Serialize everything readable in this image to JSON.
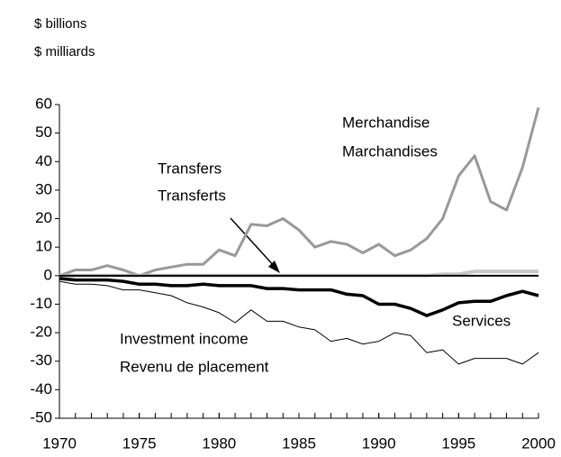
{
  "chart_data": {
    "type": "line",
    "units": [
      "$ billions",
      "$ milliards"
    ],
    "x": [
      1970,
      1971,
      1972,
      1973,
      1974,
      1975,
      1976,
      1977,
      1978,
      1979,
      1980,
      1981,
      1982,
      1983,
      1984,
      1985,
      1986,
      1987,
      1988,
      1989,
      1990,
      1991,
      1992,
      1993,
      1994,
      1995,
      1996,
      1997,
      1998,
      1999,
      2000
    ],
    "xlim": [
      1970,
      2000
    ],
    "xticks": [
      1970,
      1975,
      1980,
      1985,
      1990,
      1995,
      2000
    ],
    "ylim": [
      -50,
      60
    ],
    "yticks": [
      -50,
      -40,
      -30,
      -20,
      -10,
      0,
      10,
      20,
      30,
      40,
      50,
      60
    ],
    "series": [
      {
        "name": "Merchandise",
        "name_fr": "Marchandises",
        "color": "#999999",
        "width": 3,
        "values": [
          0,
          2,
          2,
          3.5,
          2,
          0,
          2,
          3,
          4,
          4,
          9,
          7,
          18,
          17.5,
          20,
          16,
          10,
          12,
          11,
          8,
          11,
          7,
          9,
          13,
          20,
          35,
          42,
          26,
          23,
          38,
          59
        ]
      },
      {
        "name": "Transfers",
        "name_fr": "Transferts",
        "color": "#c8c8c8",
        "width": 4,
        "values": [
          0,
          0,
          0,
          0,
          0,
          0,
          0,
          0,
          0,
          0,
          0,
          0,
          0,
          0,
          0,
          0,
          0,
          0,
          0,
          0,
          0,
          0,
          0,
          0,
          0.5,
          0.5,
          1.5,
          1.5,
          1.5,
          1.5,
          1.5
        ]
      },
      {
        "name": "Services",
        "color": "#000000",
        "width": 3.5,
        "values": [
          -1,
          -1.5,
          -1.5,
          -1.5,
          -2,
          -3,
          -3,
          -3.5,
          -3.5,
          -3,
          -3.5,
          -3.5,
          -3.5,
          -4.5,
          -4.5,
          -5,
          -5,
          -5,
          -6.5,
          -7,
          -10,
          -10,
          -11.5,
          -14,
          -12,
          -9.5,
          -9,
          -9,
          -7,
          -5.5,
          -7
        ]
      },
      {
        "name": "Investment income",
        "name_fr": "Revenu de placement",
        "color": "#000000",
        "width": 1,
        "values": [
          -2,
          -3,
          -3,
          -3.5,
          -5,
          -5,
          -6,
          -7,
          -9.5,
          -11,
          -13,
          -16.5,
          -12,
          -16,
          -16,
          -18,
          -19,
          -23,
          -22,
          -24,
          -23,
          -20,
          -21,
          -27,
          -26,
          -31,
          -29,
          -29,
          -29,
          -31,
          -27
        ]
      }
    ]
  }
}
